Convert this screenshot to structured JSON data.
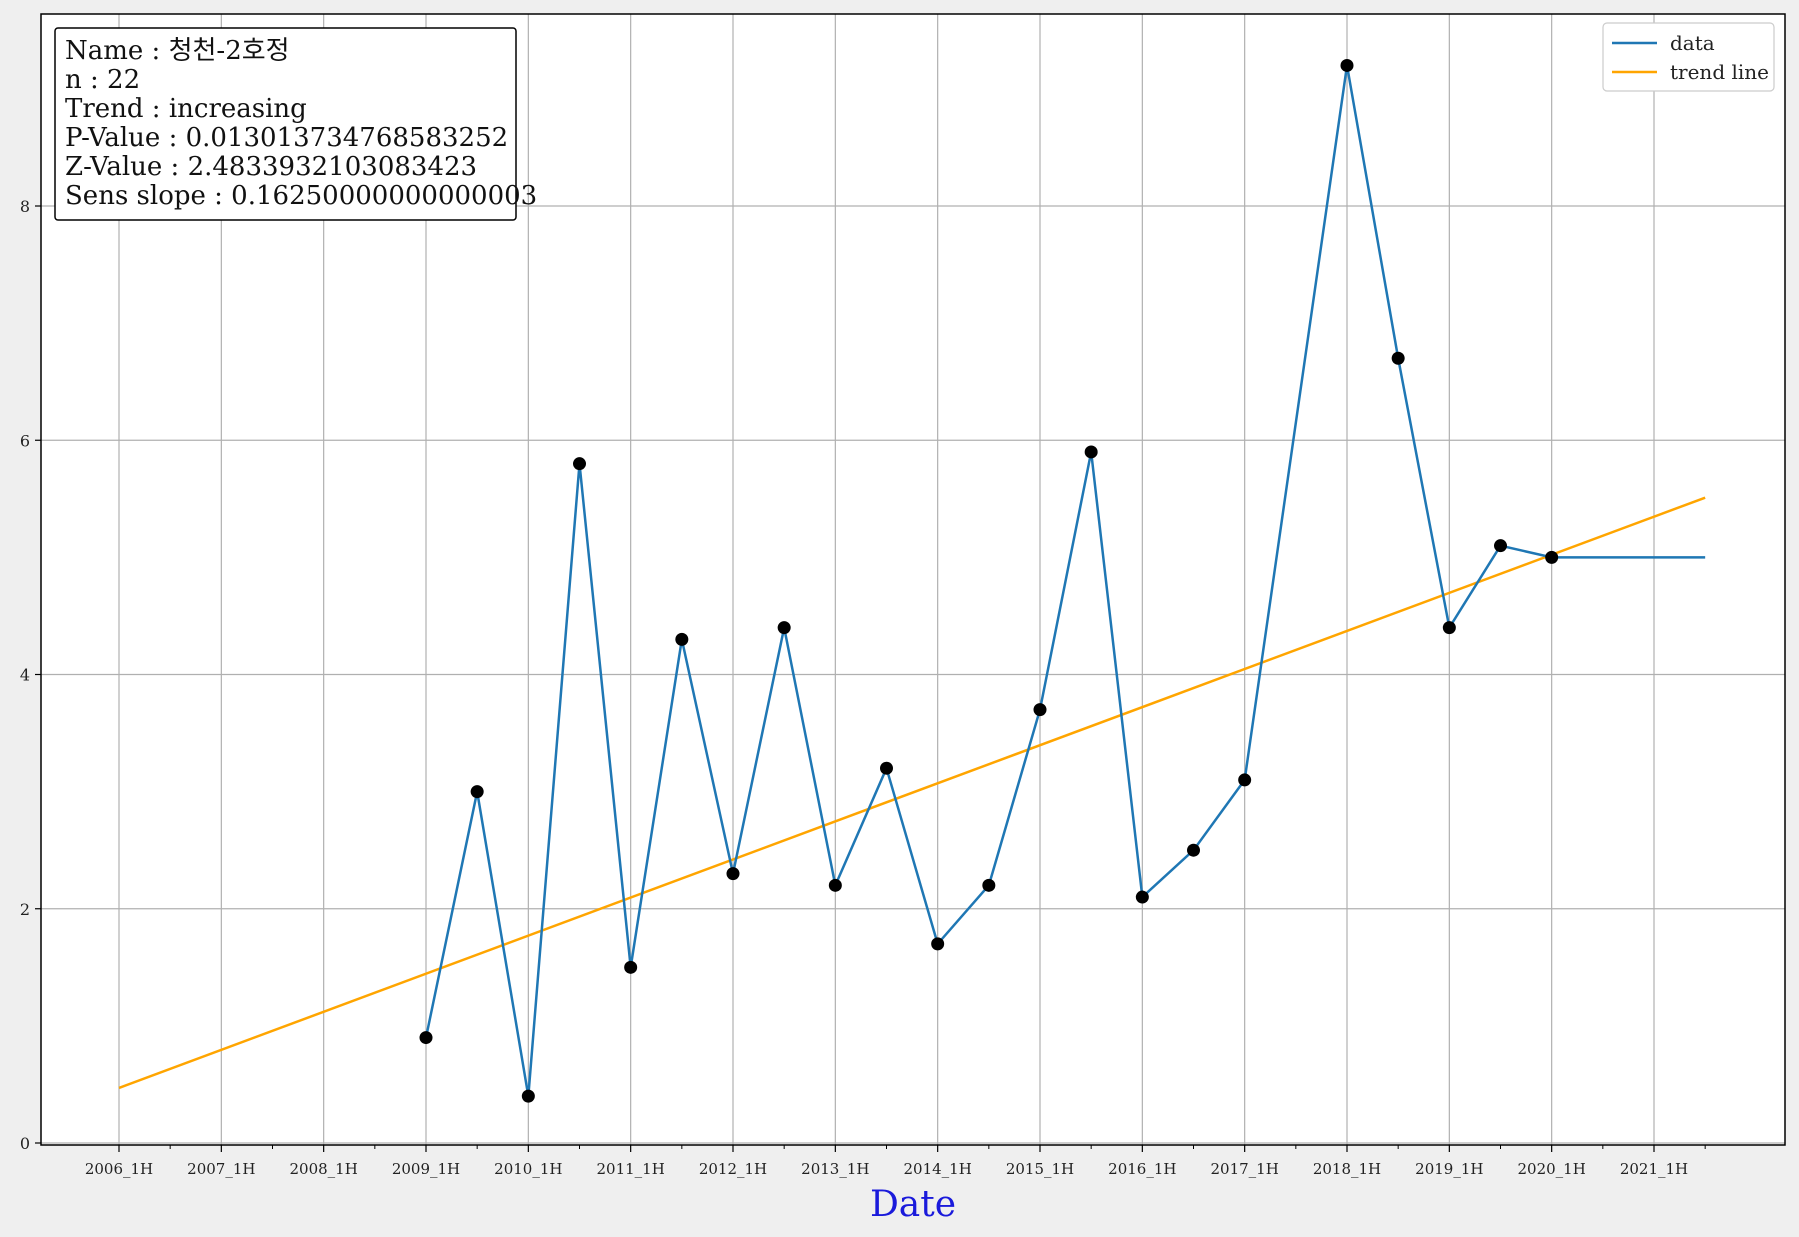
{
  "chart_data": {
    "type": "line",
    "xlabel": "Date",
    "ylabel": "",
    "ylim": [
      0,
      9.6
    ],
    "xlim": [
      2005.8,
      2023.0
    ],
    "grid": true,
    "legend_placement": "top-right",
    "x_ticks": [
      {
        "x": 2006,
        "label": "2006_1H"
      },
      {
        "x": 2007,
        "label": "2007_1H"
      },
      {
        "x": 2008,
        "label": "2008_1H"
      },
      {
        "x": 2009,
        "label": "2009_1H"
      },
      {
        "x": 2010,
        "label": "2010_1H"
      },
      {
        "x": 2011,
        "label": "2011_1H"
      },
      {
        "x": 2012,
        "label": "2012_1H"
      },
      {
        "x": 2013,
        "label": "2013_1H"
      },
      {
        "x": 2014,
        "label": "2014_1H"
      },
      {
        "x": 2015,
        "label": "2015_1H"
      },
      {
        "x": 2016,
        "label": "2016_1H"
      },
      {
        "x": 2017,
        "label": "2017_1H"
      },
      {
        "x": 2018,
        "label": "2018_1H"
      },
      {
        "x": 2019,
        "label": "2019_1H"
      },
      {
        "x": 2020,
        "label": "2020_1H"
      },
      {
        "x": 2021,
        "label": "2021_1H"
      }
    ],
    "y_ticks": [
      {
        "y": 0,
        "label": "0"
      },
      {
        "y": 2,
        "label": "2"
      },
      {
        "y": 4,
        "label": "4"
      },
      {
        "y": 6,
        "label": "6"
      },
      {
        "y": 8,
        "label": "8"
      }
    ],
    "series": [
      {
        "name": "data",
        "color": "#1f77b4",
        "x": [
          2009.0,
          2009.5,
          2010.0,
          2010.5,
          2011.0,
          2011.5,
          2012.0,
          2012.5,
          2013.0,
          2013.5,
          2014.0,
          2014.5,
          2015.0,
          2015.5,
          2016.0,
          2016.5,
          2017.0,
          2018.0,
          2018.5,
          2019.0,
          2019.5,
          2020.0,
          2021.5
        ],
        "y": [
          0.9,
          3.0,
          0.4,
          5.8,
          1.5,
          4.3,
          2.3,
          4.4,
          2.2,
          3.2,
          1.7,
          2.2,
          3.7,
          5.9,
          2.1,
          2.5,
          3.1,
          9.2,
          6.7,
          4.4,
          5.1,
          5.0,
          5.0
        ],
        "markers": [
          true,
          true,
          true,
          true,
          true,
          true,
          true,
          true,
          true,
          true,
          true,
          true,
          true,
          true,
          true,
          true,
          true,
          true,
          true,
          true,
          true,
          true,
          false
        ]
      },
      {
        "name": "trend line",
        "color": "#ffa500",
        "x": [
          2006.0,
          2021.5
        ],
        "y": [
          0.47,
          5.51
        ]
      }
    ],
    "stats_box": [
      "Name : 청천-2호정",
      "n : 22",
      "Trend : increasing",
      "P-Value : 0.013013734768583252",
      "Z-Value : 2.4833932103083423",
      "Sens slope : 0.16250000000000003"
    ]
  }
}
